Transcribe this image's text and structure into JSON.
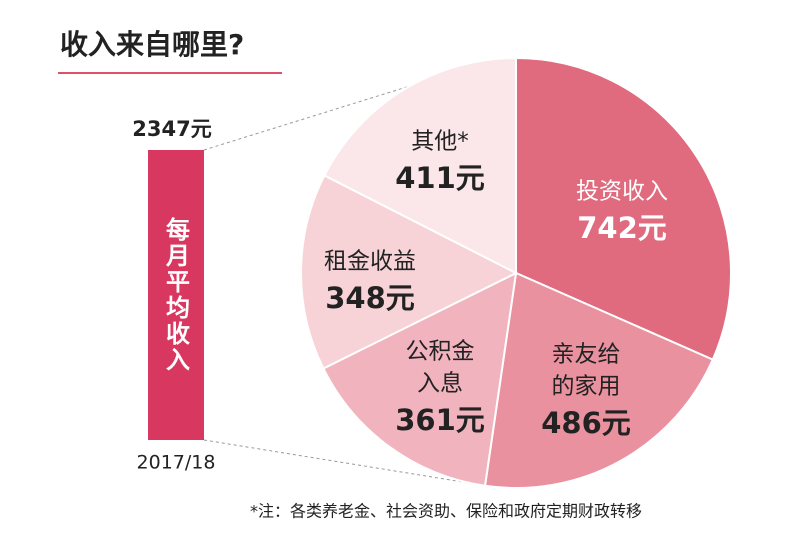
{
  "chart_data": {
    "type": "pie",
    "title": "收入来自哪里?",
    "total": 2347,
    "total_label": "2347元",
    "total_bar_label": "每月平均收入",
    "period": "2017/18",
    "categories": [
      [
        "投资收入"
      ],
      [
        "亲友给",
        "的家用"
      ],
      [
        "公积金",
        "入息"
      ],
      [
        "租金收益"
      ],
      [
        "其他*"
      ]
    ],
    "values": [
      742,
      486,
      361,
      348,
      411
    ],
    "value_labels": [
      "742元",
      "486元",
      "361元",
      "348元",
      "411元"
    ],
    "colors": [
      "#e06a7e",
      "#e9919f",
      "#f1b4be",
      "#f7d2d7",
      "#fbe7e9"
    ],
    "bar_color": "#d8385f",
    "footnote": "*注：各类养老金、社会资助、保险和政府定期财政转移"
  }
}
